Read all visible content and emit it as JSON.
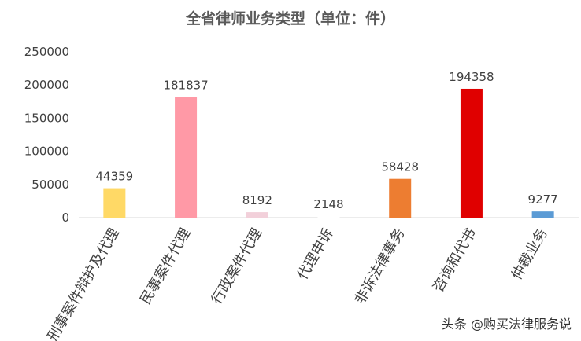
{
  "chart_data": {
    "type": "bar",
    "title": "全省律师业务类型（单位：件）",
    "categories": [
      "刑事案件辩护及代理",
      "民事案件代理",
      "行政案件代理",
      "代理申诉",
      "非诉法律事务",
      "咨询和代书",
      "仲裁业务"
    ],
    "values": [
      44359,
      181837,
      8192,
      2148,
      58428,
      194358,
      9277
    ],
    "bar_colors": [
      "#FFD966",
      "#FF99A6",
      "#F2D0DA",
      "#FFFFFF",
      "#ED7D31",
      "#E00000",
      "#5B9BD5"
    ],
    "yticks": [
      0,
      50000,
      100000,
      150000,
      200000,
      250000
    ],
    "ylim": [
      0,
      250000
    ],
    "grid": false,
    "legend": "none"
  },
  "watermark": "头条 @购买法律服务说"
}
